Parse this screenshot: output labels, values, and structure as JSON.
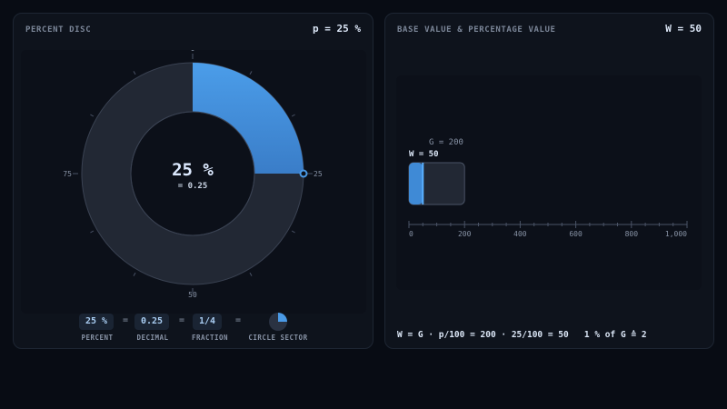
{
  "left_panel": {
    "title": "PERCENT DISC",
    "value": "p = 25 %",
    "disc": {
      "percent": 25,
      "center_main": "25 %",
      "center_sub": "= 0.25",
      "labels": {
        "top": "0",
        "right": "25",
        "bottom": "50",
        "left": "75"
      }
    },
    "chips": [
      {
        "value": "25 %",
        "label": "PERCENT"
      },
      {
        "value": "0.25",
        "label": "DECIMAL"
      },
      {
        "value": "1/4",
        "label": "FRACTION"
      },
      {
        "value": "",
        "label": "CIRCLE SECTOR"
      }
    ],
    "equals": "="
  },
  "right_panel": {
    "title": "BASE VALUE & PERCENTAGE VALUE",
    "value": "W = 50",
    "base_label": "G = 200",
    "pct_label": "W = 50",
    "base": 200,
    "percentage_value": 50,
    "axis_ticks": [
      "0",
      "200",
      "400",
      "600",
      "800",
      "1,000"
    ],
    "axis_max": 1000,
    "formula": "W = G · p/100 = 200 · 25/100 = 50   1 % of G ≙ 2"
  },
  "colors": {
    "accent": "#4a9ae6",
    "accent_dark": "#3573bd",
    "track": "#222834",
    "background": "#080c14"
  }
}
